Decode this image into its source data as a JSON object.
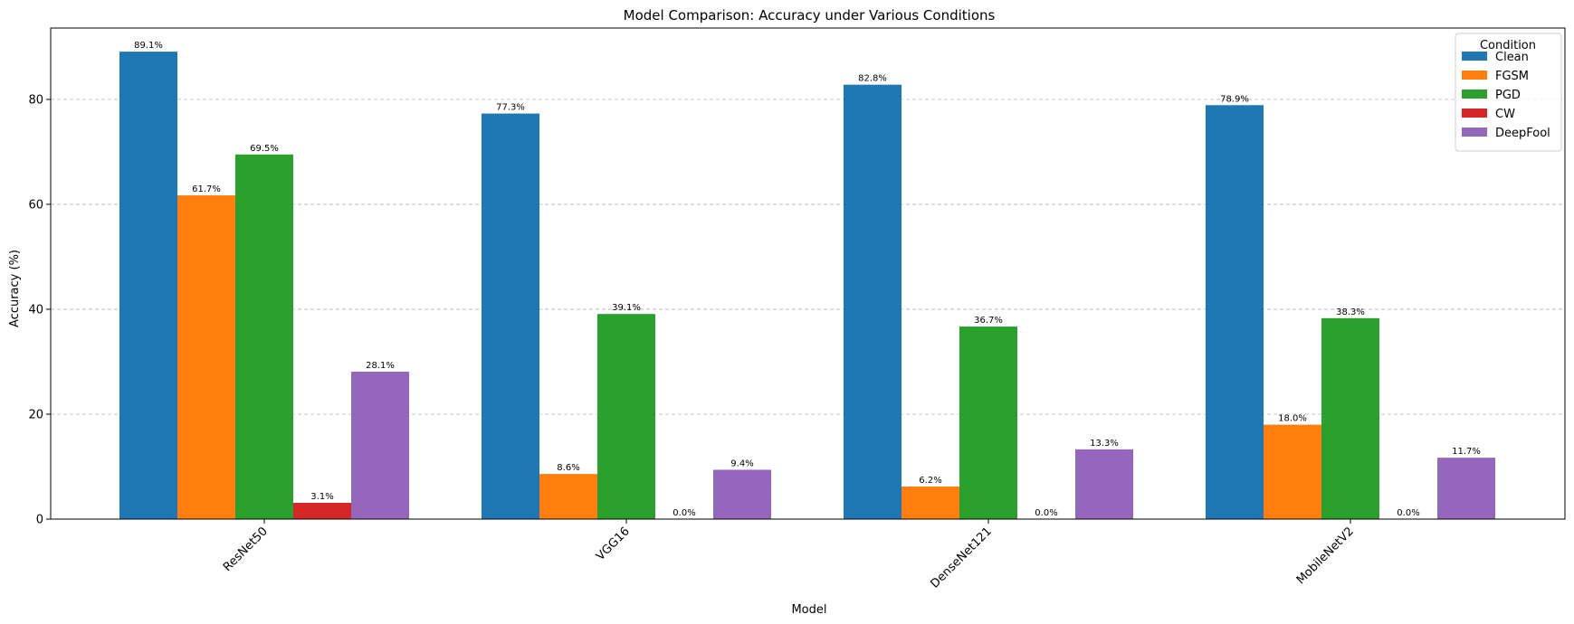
{
  "chart_data": {
    "type": "bar",
    "title": "Model Comparison: Accuracy under Various Conditions",
    "xlabel": "Model",
    "ylabel": "Accuracy (%)",
    "categories": [
      "ResNet50",
      "VGG16",
      "DenseNet121",
      "MobileNetV2"
    ],
    "series": [
      {
        "name": "Clean",
        "color": "#1f77b4",
        "values": [
          89.1,
          77.3,
          82.8,
          78.9
        ]
      },
      {
        "name": "FGSM",
        "color": "#ff7f0e",
        "values": [
          61.7,
          8.6,
          6.2,
          18.0
        ]
      },
      {
        "name": "PGD",
        "color": "#2ca02c",
        "values": [
          69.5,
          39.1,
          36.7,
          38.3
        ]
      },
      {
        "name": "CW",
        "color": "#d62728",
        "values": [
          3.1,
          0.0,
          0.0,
          0.0
        ]
      },
      {
        "name": "DeepFool",
        "color": "#9467bd",
        "values": [
          28.1,
          9.4,
          13.3,
          11.7
        ]
      }
    ],
    "value_suffix": "%",
    "ylim": [
      0,
      93.6
    ],
    "yticks": [
      0,
      20,
      40,
      60,
      80
    ],
    "grid": "y-dashed",
    "legend": {
      "title": "Condition",
      "placement": "top-right"
    }
  }
}
